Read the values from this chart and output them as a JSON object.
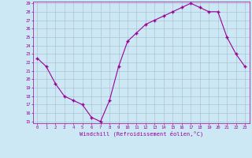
{
  "x": [
    0,
    1,
    2,
    3,
    4,
    5,
    6,
    7,
    8,
    9,
    10,
    11,
    12,
    13,
    14,
    15,
    16,
    17,
    18,
    19,
    20,
    21,
    22,
    23
  ],
  "y": [
    22.5,
    21.5,
    19.5,
    18.0,
    17.5,
    17.0,
    15.5,
    15.0,
    17.5,
    21.5,
    24.5,
    25.5,
    26.5,
    27.0,
    27.5,
    28.0,
    28.5,
    29.0,
    28.5,
    28.0,
    28.0,
    25.0,
    23.0,
    21.5
  ],
  "line_color": "#990099",
  "marker": "+",
  "marker_size": 3,
  "marker_linewidth": 1.0,
  "bg_color": "#cce8f4",
  "grid_color": "#aabbcc",
  "tick_color": "#990099",
  "label_color": "#990099",
  "xlabel": "Windchill (Refroidissement éolien,°C)",
  "ylim": [
    15,
    29
  ],
  "xlim": [
    -0.5,
    23.5
  ],
  "yticks": [
    15,
    16,
    17,
    18,
    19,
    20,
    21,
    22,
    23,
    24,
    25,
    26,
    27,
    28,
    29
  ],
  "xticks": [
    0,
    1,
    2,
    3,
    4,
    5,
    6,
    7,
    8,
    9,
    10,
    11,
    12,
    13,
    14,
    15,
    16,
    17,
    18,
    19,
    20,
    21,
    22,
    23
  ],
  "tick_fontsize": 4.0,
  "xlabel_fontsize": 5.0,
  "linewidth": 0.8
}
